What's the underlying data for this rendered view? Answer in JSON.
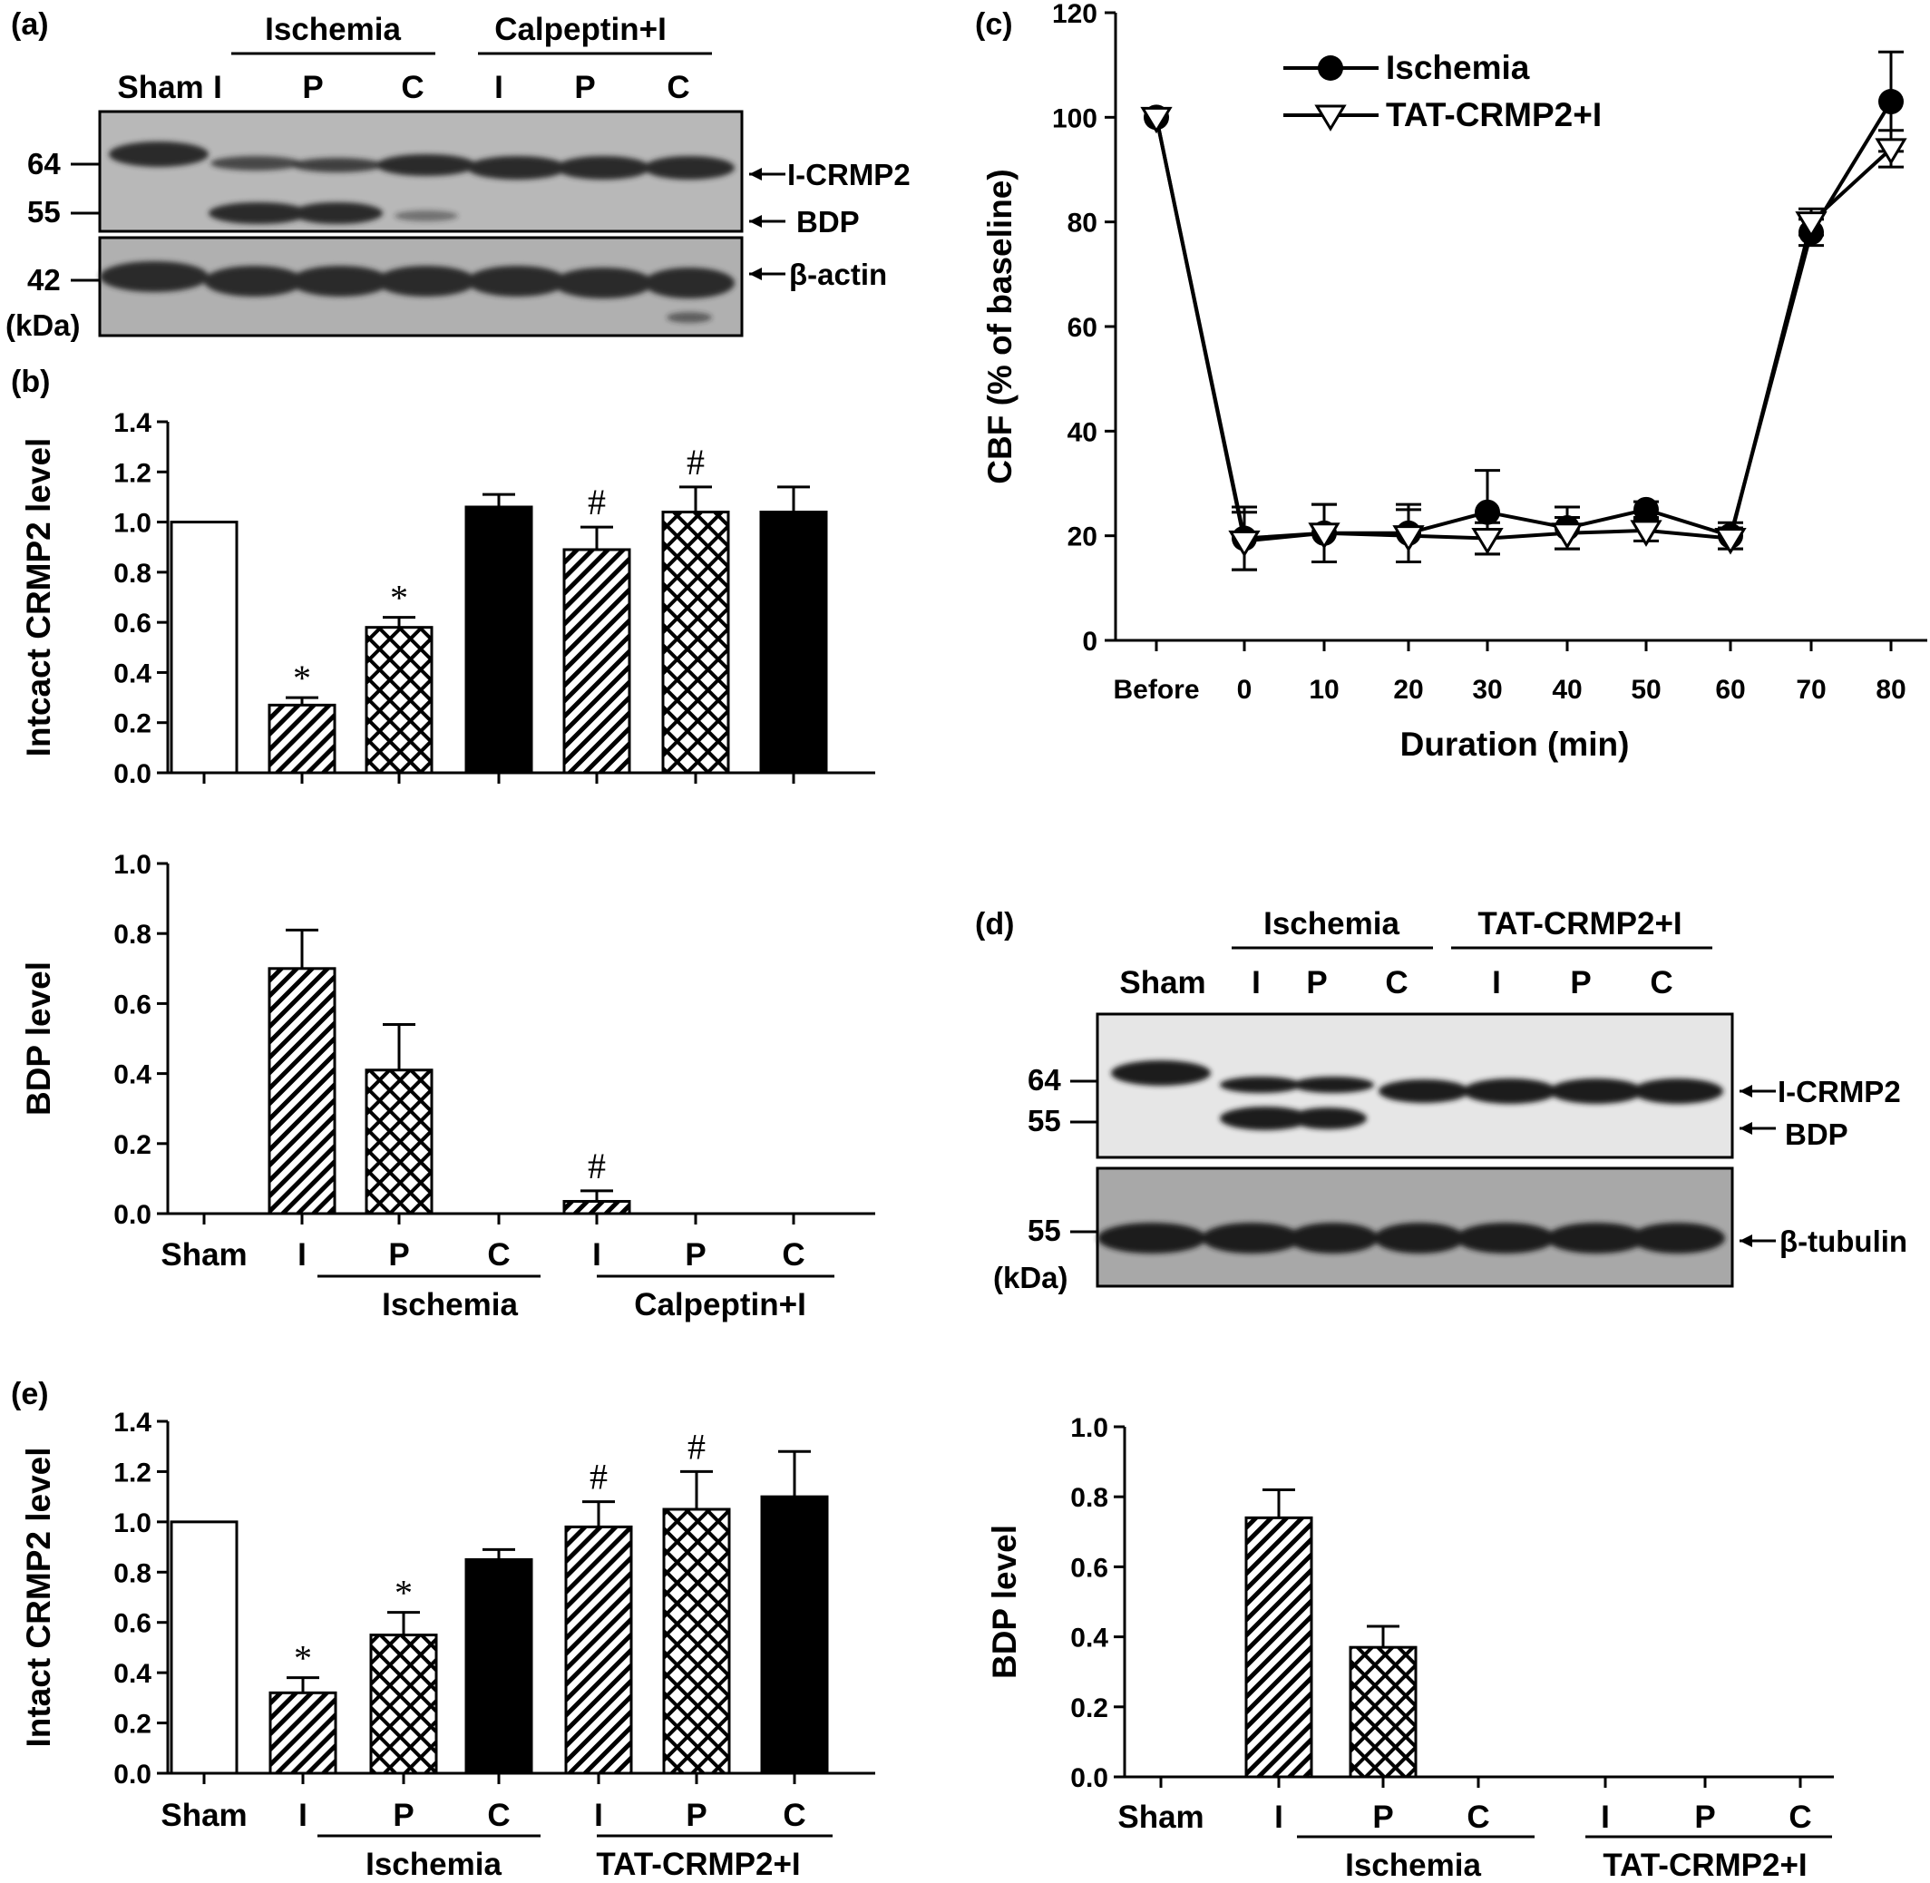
{
  "panel_labels": {
    "a": "(a)",
    "b": "(b)",
    "c": "(c)",
    "d": "(d)",
    "e": "(e)"
  },
  "blot_a": {
    "group_labels": [
      "Ischemia",
      "Calpeptin+I"
    ],
    "lanes": [
      "Sham",
      "I",
      "P",
      "C",
      "I",
      "P",
      "C"
    ],
    "markers": [
      "64",
      "55",
      "42",
      "(kDa)"
    ],
    "band_labels": [
      "I-CRMP2",
      "BDP",
      "β-actin"
    ],
    "band_colors": {
      "background": "#b8b8b8",
      "band": "#2a2a2a"
    }
  },
  "blot_d": {
    "group_labels": [
      "Ischemia",
      "TAT-CRMP2+I"
    ],
    "lanes": [
      "Sham",
      "I",
      "P",
      "C",
      "I",
      "P",
      "C"
    ],
    "markers": [
      "64",
      "55",
      "55",
      "(kDa)"
    ],
    "band_labels": [
      "I-CRMP2",
      "BDP",
      "β-tubulin"
    ],
    "band_colors": {
      "background_top": "#e6e6e6",
      "background_bottom": "#a8a8a8",
      "band": "#1e1e1e"
    }
  },
  "chart_data": [
    {
      "id": "b_top",
      "type": "bar",
      "ylabel": "Intcact CRMP2 level",
      "ylim": [
        0,
        1.4
      ],
      "yticks": [
        "0.0",
        "0.2",
        "0.4",
        "0.6",
        "0.8",
        "1.0",
        "1.2",
        "1.4"
      ],
      "categories": [
        "Sham",
        "I",
        "P",
        "C",
        "I",
        "P",
        "C"
      ],
      "values": [
        1.0,
        0.27,
        0.58,
        1.06,
        0.89,
        1.04,
        1.04
      ],
      "errors": [
        0,
        0.03,
        0.04,
        0.05,
        0.09,
        0.1,
        0.1
      ],
      "fills": [
        "white",
        "hatch",
        "cross",
        "black",
        "hatch",
        "cross",
        "black"
      ],
      "annotations": [
        "",
        "*",
        "*",
        "",
        "#",
        "#",
        ""
      ]
    },
    {
      "id": "b_bottom",
      "type": "bar",
      "ylabel": "BDP level",
      "ylim": [
        0,
        1.0
      ],
      "yticks": [
        "0.0",
        "0.2",
        "0.4",
        "0.6",
        "0.8",
        "1.0"
      ],
      "categories": [
        "Sham",
        "I",
        "P",
        "C",
        "I",
        "P",
        "C"
      ],
      "values": [
        0,
        0.7,
        0.41,
        0,
        0.035,
        0,
        0
      ],
      "errors": [
        0,
        0.11,
        0.13,
        0,
        0.03,
        0,
        0
      ],
      "fills": [
        "white",
        "hatch",
        "cross",
        "black",
        "hatch",
        "cross",
        "black"
      ],
      "annotations": [
        "",
        "",
        "",
        "",
        "#",
        "",
        ""
      ],
      "groups": [
        "Ischemia",
        "Calpeptin+I"
      ]
    },
    {
      "id": "c",
      "type": "line",
      "ylabel": "CBF (% of baseline)",
      "xlabel": "Duration (min)",
      "ylim": [
        0,
        120
      ],
      "yticks": [
        "0",
        "20",
        "40",
        "60",
        "80",
        "100",
        "120"
      ],
      "x": [
        "Before",
        "0",
        "10",
        "20",
        "30",
        "40",
        "50",
        "60",
        "70",
        "80"
      ],
      "legend": "top-left",
      "series": [
        {
          "name": "Ischemia",
          "marker": "filled-circle",
          "values": [
            100,
            19.5,
            20.5,
            20.5,
            24.5,
            21.5,
            25,
            20,
            78,
            103
          ],
          "errors": [
            0,
            6,
            5.5,
            5.5,
            8,
            4,
            1.5,
            2.5,
            2.5,
            9.5
          ]
        },
        {
          "name": "TAT-CRMP2+I",
          "marker": "open-triangle",
          "values": [
            100,
            19,
            20.5,
            20,
            19.5,
            20.5,
            21,
            19.5,
            80,
            94
          ],
          "errors": [
            0,
            5.5,
            5.5,
            5,
            3,
            3,
            2,
            2,
            2.5,
            3.5
          ]
        }
      ]
    },
    {
      "id": "e",
      "type": "bar",
      "ylabel": "Intact CRMP2 level",
      "ylim": [
        0,
        1.4
      ],
      "yticks": [
        "0.0",
        "0.2",
        "0.4",
        "0.6",
        "0.8",
        "1.0",
        "1.2",
        "1.4"
      ],
      "categories": [
        "Sham",
        "I",
        "P",
        "C",
        "I",
        "P",
        "C"
      ],
      "values": [
        1.0,
        0.32,
        0.55,
        0.85,
        0.98,
        1.05,
        1.1
      ],
      "errors": [
        0,
        0.06,
        0.09,
        0.04,
        0.1,
        0.15,
        0.18
      ],
      "fills": [
        "white",
        "hatch",
        "cross",
        "black",
        "hatch",
        "cross",
        "black"
      ],
      "annotations": [
        "",
        "*",
        "*",
        "",
        "#",
        "#",
        ""
      ],
      "groups": [
        "Ischemia",
        "TAT-CRMP2+I"
      ]
    },
    {
      "id": "f",
      "type": "bar",
      "ylabel": "BDP level",
      "ylim": [
        0,
        1.0
      ],
      "yticks": [
        "0.0",
        "0.2",
        "0.4",
        "0.6",
        "0.8",
        "1.0"
      ],
      "categories": [
        "Sham",
        "I",
        "P",
        "C",
        "I",
        "P",
        "C"
      ],
      "values": [
        0,
        0.74,
        0.37,
        0,
        0,
        0,
        0
      ],
      "errors": [
        0,
        0.08,
        0.06,
        0,
        0,
        0,
        0
      ],
      "fills": [
        "white",
        "hatch",
        "cross",
        "black",
        "hatch",
        "cross",
        "black"
      ],
      "annotations": [
        "",
        "",
        "",
        "",
        "",
        "",
        ""
      ],
      "groups": [
        "Ischemia",
        "TAT-CRMP2+I"
      ]
    }
  ]
}
